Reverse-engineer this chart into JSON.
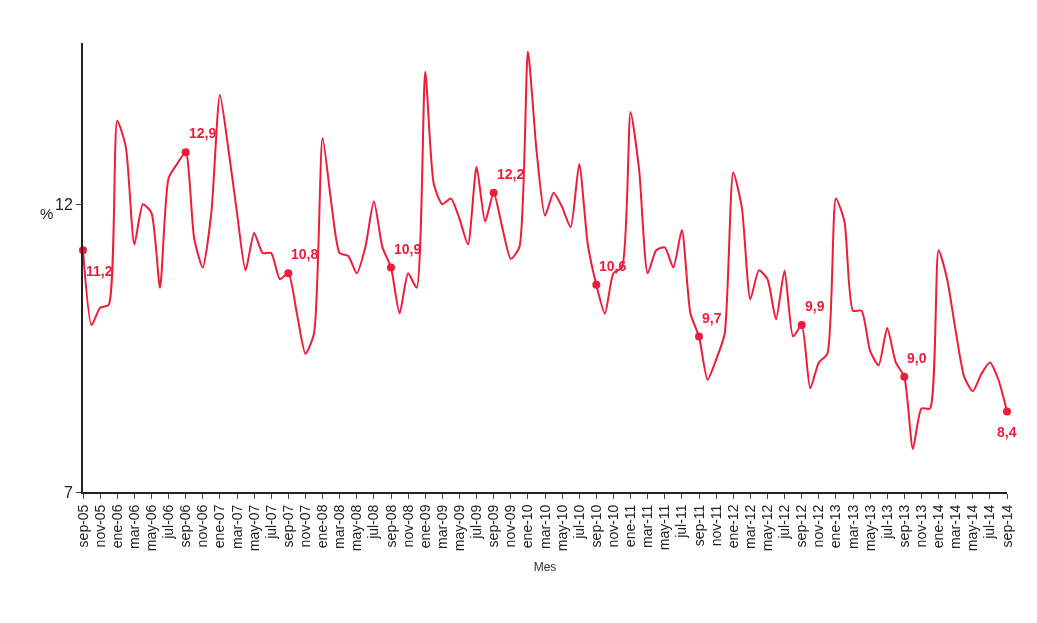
{
  "chart_data": {
    "type": "line",
    "xlabel": "Mes",
    "ylabel": "%",
    "categories": [
      "sep-05",
      null,
      "nov-05",
      null,
      "ene-06",
      null,
      "mar-06",
      null,
      "may-06",
      null,
      "jul-06",
      null,
      "sep-06",
      null,
      "nov-06",
      null,
      "ene-07",
      null,
      "mar-07",
      null,
      "may-07",
      null,
      "jul-07",
      null,
      "sep-07",
      null,
      "nov-07",
      null,
      "ene-08",
      null,
      "mar-08",
      null,
      "may-08",
      null,
      "jul-08",
      null,
      "sep-08",
      null,
      "nov-08",
      null,
      "ene-09",
      null,
      "mar-09",
      null,
      "may-09",
      null,
      "jul-09",
      null,
      "sep-09",
      null,
      "nov-09",
      null,
      "ene-10",
      null,
      "mar-10",
      null,
      "may-10",
      null,
      "jul-10",
      null,
      "sep-10",
      null,
      "nov-10",
      null,
      "ene-11",
      null,
      "mar-11",
      null,
      "may-11",
      null,
      "jul-11",
      null,
      "sep-11",
      null,
      "nov-11",
      null,
      "ene-12",
      null,
      "mar-12",
      null,
      "may-12",
      null,
      "jul-12",
      null,
      "sep-12",
      null,
      "nov-12",
      null,
      "ene-13",
      null,
      "mar-13",
      null,
      "may-13",
      null,
      "jul-13",
      null,
      "sep-13",
      null,
      "nov-13",
      null,
      "ene-14",
      null,
      "mar-14",
      null,
      "may-14",
      null,
      "jul-14",
      null,
      "sep-14"
    ],
    "series": [
      {
        "color": "#ee1c3a",
        "values": [
          11.2,
          9.9,
          10.2,
          10.25,
          13.45,
          13.0,
          11.3,
          12.0,
          11.85,
          10.55,
          12.45,
          12.7,
          12.9,
          11.4,
          10.9,
          11.85,
          13.9,
          12.95,
          11.85,
          10.85,
          11.5,
          11.15,
          11.15,
          10.7,
          10.8,
          10.1,
          9.4,
          9.75,
          13.15,
          12.05,
          11.15,
          11.1,
          10.8,
          11.25,
          12.05,
          11.25,
          10.9,
          10.1,
          10.8,
          10.55,
          14.3,
          12.35,
          12.0,
          12.1,
          11.75,
          11.3,
          12.65,
          11.7,
          12.2,
          11.6,
          11.05,
          11.25,
          14.65,
          12.95,
          11.8,
          12.2,
          11.95,
          11.6,
          12.7,
          11.3,
          10.6,
          10.1,
          10.8,
          10.9,
          13.6,
          12.6,
          10.8,
          11.2,
          11.25,
          10.9,
          11.55,
          10.1,
          9.7,
          8.95,
          9.3,
          9.75,
          12.55,
          11.95,
          10.35,
          10.85,
          10.7,
          10.0,
          10.85,
          9.7,
          9.9,
          8.8,
          9.25,
          9.4,
          12.1,
          11.7,
          10.15,
          10.15,
          9.45,
          9.2,
          9.85,
          9.25,
          9.0,
          7.75,
          8.45,
          8.45,
          11.2,
          10.7,
          9.8,
          9.0,
          8.75,
          9.05,
          9.25,
          8.95,
          8.4
        ],
        "value_labels": [
          "11,2",
          null,
          null,
          null,
          null,
          null,
          null,
          null,
          null,
          null,
          null,
          null,
          "12,9",
          null,
          null,
          null,
          null,
          null,
          null,
          null,
          null,
          null,
          null,
          null,
          "10,8",
          null,
          null,
          null,
          null,
          null,
          null,
          null,
          null,
          null,
          null,
          null,
          "10,9",
          null,
          null,
          null,
          null,
          null,
          null,
          null,
          null,
          null,
          null,
          null,
          "12,2",
          null,
          null,
          null,
          null,
          null,
          null,
          null,
          null,
          null,
          null,
          null,
          "10,6",
          null,
          null,
          null,
          null,
          null,
          null,
          null,
          null,
          null,
          null,
          null,
          "9,7",
          null,
          null,
          null,
          null,
          null,
          null,
          null,
          null,
          null,
          null,
          null,
          "9,9",
          null,
          null,
          null,
          null,
          null,
          null,
          null,
          null,
          null,
          null,
          null,
          "9,0",
          null,
          null,
          null,
          null,
          null,
          null,
          null,
          null,
          null,
          null,
          null,
          "8,4"
        ]
      }
    ],
    "ylim": [
      7,
      14.8
    ],
    "yticks": [
      7,
      12
    ],
    "grid": false,
    "legend": false,
    "line_style": "solid"
  }
}
